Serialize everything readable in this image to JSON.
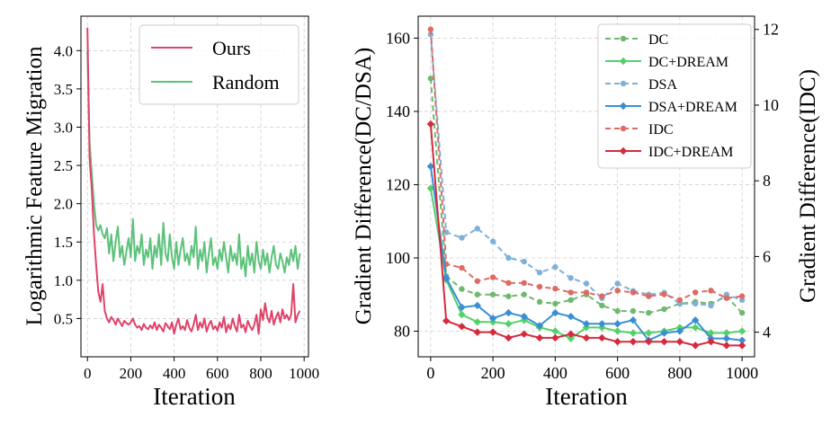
{
  "chart_data": [
    {
      "type": "line",
      "xlabel": "Iteration",
      "ylabel": "Logarithmic Feature Migration",
      "xlim": [
        -30,
        1020
      ],
      "ylim": [
        0.0,
        4.45
      ],
      "xticks": [
        0,
        200,
        400,
        600,
        800,
        1000
      ],
      "yticks": [
        0.5,
        1.0,
        1.5,
        2.0,
        2.5,
        3.0,
        3.5,
        4.0
      ],
      "xtick_labels": [
        "0",
        "200",
        "400",
        "600",
        "800",
        "1000"
      ],
      "ytick_labels": [
        "0.5",
        "1.0",
        "1.5",
        "2.0",
        "2.5",
        "3.0",
        "3.5",
        "4.0"
      ],
      "grid": true,
      "legend_position": "top-right",
      "series": [
        {
          "name": "Ours",
          "color": "#e0436a",
          "x": [
            0,
            10,
            20,
            30,
            40,
            50,
            60,
            70,
            80,
            90,
            100,
            110,
            120,
            130,
            140,
            150,
            160,
            170,
            180,
            190,
            200,
            210,
            220,
            230,
            240,
            250,
            260,
            270,
            280,
            290,
            300,
            310,
            320,
            330,
            340,
            350,
            360,
            370,
            380,
            390,
            400,
            410,
            420,
            430,
            440,
            450,
            460,
            470,
            480,
            490,
            500,
            510,
            520,
            530,
            540,
            550,
            560,
            570,
            580,
            590,
            600,
            610,
            620,
            630,
            640,
            650,
            660,
            670,
            680,
            690,
            700,
            710,
            720,
            730,
            740,
            750,
            760,
            770,
            780,
            790,
            800,
            810,
            820,
            830,
            840,
            850,
            860,
            870,
            880,
            890,
            900,
            910,
            920,
            930,
            940,
            950,
            960,
            970,
            980
          ],
          "values": [
            4.3,
            2.6,
            2.2,
            1.6,
            1.2,
            0.85,
            0.72,
            0.95,
            0.6,
            0.5,
            0.45,
            0.52,
            0.48,
            0.42,
            0.5,
            0.45,
            0.4,
            0.47,
            0.44,
            0.42,
            0.45,
            0.5,
            0.42,
            0.38,
            0.4,
            0.35,
            0.43,
            0.38,
            0.36,
            0.41,
            0.37,
            0.45,
            0.35,
            0.42,
            0.38,
            0.33,
            0.44,
            0.4,
            0.36,
            0.45,
            0.3,
            0.42,
            0.5,
            0.36,
            0.4,
            0.35,
            0.48,
            0.38,
            0.33,
            0.42,
            0.55,
            0.35,
            0.45,
            0.38,
            0.5,
            0.33,
            0.42,
            0.47,
            0.36,
            0.4,
            0.34,
            0.45,
            0.38,
            0.52,
            0.32,
            0.42,
            0.36,
            0.5,
            0.4,
            0.33,
            0.55,
            0.38,
            0.42,
            0.32,
            0.47,
            0.4,
            0.35,
            0.42,
            0.55,
            0.3,
            0.62,
            0.48,
            0.7,
            0.52,
            0.45,
            0.6,
            0.42,
            0.52,
            0.58,
            0.45,
            0.62,
            0.5,
            0.55,
            0.48,
            0.55,
            0.95,
            0.45,
            0.55,
            0.6
          ]
        },
        {
          "name": "Random",
          "color": "#5cc27a",
          "x": [
            0,
            10,
            20,
            30,
            40,
            50,
            60,
            70,
            80,
            90,
            100,
            110,
            120,
            130,
            140,
            150,
            160,
            170,
            180,
            190,
            200,
            210,
            220,
            230,
            240,
            250,
            260,
            270,
            280,
            290,
            300,
            310,
            320,
            330,
            340,
            350,
            360,
            370,
            380,
            390,
            400,
            410,
            420,
            430,
            440,
            450,
            460,
            470,
            480,
            490,
            500,
            510,
            520,
            530,
            540,
            550,
            560,
            570,
            580,
            590,
            600,
            610,
            620,
            630,
            640,
            650,
            660,
            670,
            680,
            690,
            700,
            710,
            720,
            730,
            740,
            750,
            760,
            770,
            780,
            790,
            800,
            810,
            820,
            830,
            840,
            850,
            860,
            870,
            880,
            890,
            900,
            910,
            920,
            930,
            940,
            950,
            960,
            970,
            980
          ],
          "values": [
            4.0,
            2.8,
            2.4,
            2.0,
            1.72,
            1.65,
            1.72,
            1.6,
            1.55,
            1.68,
            1.35,
            1.6,
            1.25,
            1.5,
            1.7,
            1.3,
            1.45,
            1.2,
            1.38,
            1.55,
            1.3,
            1.8,
            1.25,
            1.45,
            1.35,
            1.6,
            1.2,
            1.4,
            1.3,
            1.55,
            1.15,
            1.45,
            1.3,
            1.6,
            1.2,
            1.75,
            1.35,
            1.25,
            1.6,
            1.3,
            1.15,
            1.5,
            1.2,
            1.4,
            1.55,
            1.25,
            1.35,
            1.2,
            1.45,
            1.3,
            1.7,
            1.15,
            1.4,
            1.25,
            1.5,
            1.1,
            1.35,
            1.55,
            1.2,
            1.3,
            1.15,
            1.4,
            1.25,
            1.5,
            1.3,
            1.1,
            1.45,
            1.25,
            1.35,
            1.2,
            1.6,
            1.15,
            1.3,
            1.05,
            1.45,
            1.2,
            1.35,
            1.1,
            1.5,
            1.25,
            1.15,
            1.4,
            1.2,
            1.35,
            1.1,
            1.3,
            1.45,
            1.2,
            1.15,
            1.35,
            1.25,
            1.1,
            1.3,
            1.2,
            1.4,
            1.25,
            1.45,
            1.15,
            1.35
          ]
        }
      ]
    },
    {
      "type": "line",
      "xlabel": "Iteration",
      "ylabel": "Gradient Difference(DC/DSA)",
      "ylabel_right": "Gradient Difference(IDC)",
      "xlim": [
        -40,
        1040
      ],
      "ylim": [
        73,
        166
      ],
      "ylim_right": [
        3.35,
        12.35
      ],
      "xticks": [
        0,
        200,
        400,
        600,
        800,
        1000
      ],
      "yticks": [
        80,
        100,
        120,
        140,
        160
      ],
      "yticks_right": [
        4,
        6,
        8,
        10,
        12
      ],
      "xtick_labels": [
        "0",
        "200",
        "400",
        "600",
        "800",
        "1000"
      ],
      "ytick_labels": [
        "80",
        "100",
        "120",
        "140",
        "160"
      ],
      "ytick_labels_right": [
        "4",
        "6",
        "8",
        "10",
        "12"
      ],
      "grid": true,
      "legend_position": "top-right",
      "x": [
        0,
        50,
        100,
        150,
        200,
        250,
        300,
        350,
        400,
        450,
        500,
        550,
        600,
        650,
        700,
        750,
        800,
        850,
        900,
        950,
        1000
      ],
      "series": [
        {
          "name": "DC",
          "color": "#6fb86f",
          "style": "dashed",
          "axis": "left",
          "values": [
            149,
            95,
            91.5,
            90,
            90,
            89.5,
            90,
            88,
            87.5,
            88.5,
            90,
            87,
            85.5,
            85.5,
            85,
            86,
            87.5,
            88,
            87.5,
            89.5,
            85
          ]
        },
        {
          "name": "DC+DREAM",
          "color": "#55d16a",
          "style": "solid",
          "axis": "left",
          "values": [
            119,
            94,
            84.5,
            82.5,
            82.5,
            82,
            83,
            81,
            80,
            78,
            81,
            81,
            80,
            79.5,
            79.5,
            80,
            81,
            81,
            79.5,
            79.5,
            80
          ]
        },
        {
          "name": "DSA",
          "color": "#7fb0d8",
          "style": "dashed",
          "axis": "left",
          "values": [
            161,
            107,
            105.5,
            108,
            104.5,
            100,
            99,
            96,
            97.5,
            94.5,
            93,
            89,
            93,
            91,
            90,
            90.5,
            87.5,
            87.5,
            87,
            90,
            88.5
          ]
        },
        {
          "name": "DSA+DREAM",
          "color": "#3a8fd4",
          "style": "solid",
          "axis": "left",
          "values": [
            125,
            94.5,
            86.5,
            87,
            83.5,
            85,
            84,
            81.5,
            85,
            84,
            82,
            82,
            82,
            83,
            77.5,
            79.5,
            80,
            83,
            78,
            78,
            77.5
          ]
        },
        {
          "name": "IDC",
          "color": "#dd6b63",
          "style": "dashed",
          "axis": "right",
          "values": [
            12.0,
            5.8,
            5.7,
            5.35,
            5.45,
            5.3,
            5.3,
            5.2,
            5.15,
            5.05,
            5.05,
            4.95,
            5.1,
            5.05,
            4.95,
            5.0,
            4.85,
            5.05,
            5.1,
            4.9,
            4.95
          ]
        },
        {
          "name": "IDC+DREAM",
          "color": "#d42b3e",
          "style": "solid",
          "axis": "right",
          "values": [
            9.5,
            4.3,
            4.15,
            4.0,
            4.0,
            3.85,
            3.95,
            3.85,
            3.85,
            3.95,
            3.85,
            3.85,
            3.75,
            3.75,
            3.75,
            3.75,
            3.75,
            3.65,
            3.75,
            3.65,
            3.65
          ]
        }
      ]
    }
  ]
}
